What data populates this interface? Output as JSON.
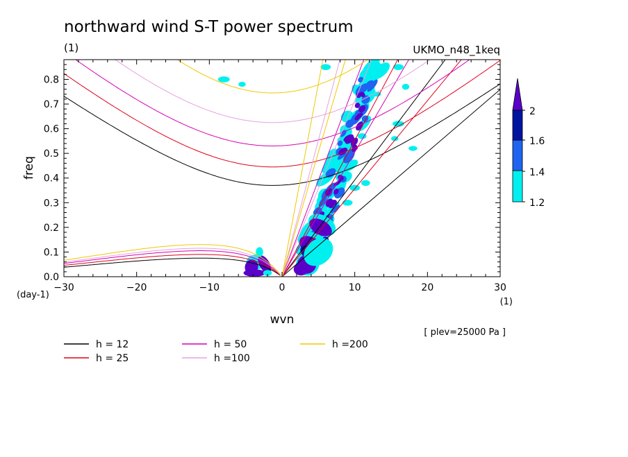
{
  "chart_data": {
    "type": "line",
    "title": "northward wind S-T power spectrum",
    "subtitle_left": "(1)",
    "subtitle_right": "UKMO_n48_1keq",
    "xlabel": "wvn",
    "ylabel": "freq",
    "x_unit": "(1)",
    "y_unit": "(day-1)",
    "annotation": "[ plev=25000 Pa ]",
    "xlim": [
      -30,
      30
    ],
    "ylim": [
      0,
      0.88
    ],
    "x_ticks": [
      -30,
      -20,
      -10,
      0,
      10,
      20,
      30
    ],
    "y_ticks": [
      0.0,
      0.1,
      0.2,
      0.3,
      0.4,
      0.5,
      0.6,
      0.7,
      0.8
    ],
    "x_tick_labels": [
      "-30",
      "-20",
      "-10",
      "0",
      "10",
      "20",
      "30"
    ],
    "y_tick_labels": [
      "0.0",
      "0.1",
      "0.2",
      "0.3",
      "0.4",
      "0.5",
      "0.6",
      "0.7",
      "0.8"
    ],
    "series": [
      {
        "name": "h = 12",
        "color": "#000000"
      },
      {
        "name": "h = 25",
        "color": "#e0001a"
      },
      {
        "name": "h = 50",
        "color": "#d400b4"
      },
      {
        "name": "h =100",
        "color": "#e8a0e0"
      },
      {
        "name": "h =200",
        "color": "#f0c800"
      }
    ],
    "colorbar": {
      "levels": [
        1.2,
        1.4,
        1.6,
        2
      ],
      "labels": [
        "1.2",
        "1.4",
        "1.6",
        "2"
      ],
      "colors": [
        "#00f0f0",
        "#1e64f0",
        "#0014a0",
        "#5a00c8"
      ]
    }
  }
}
